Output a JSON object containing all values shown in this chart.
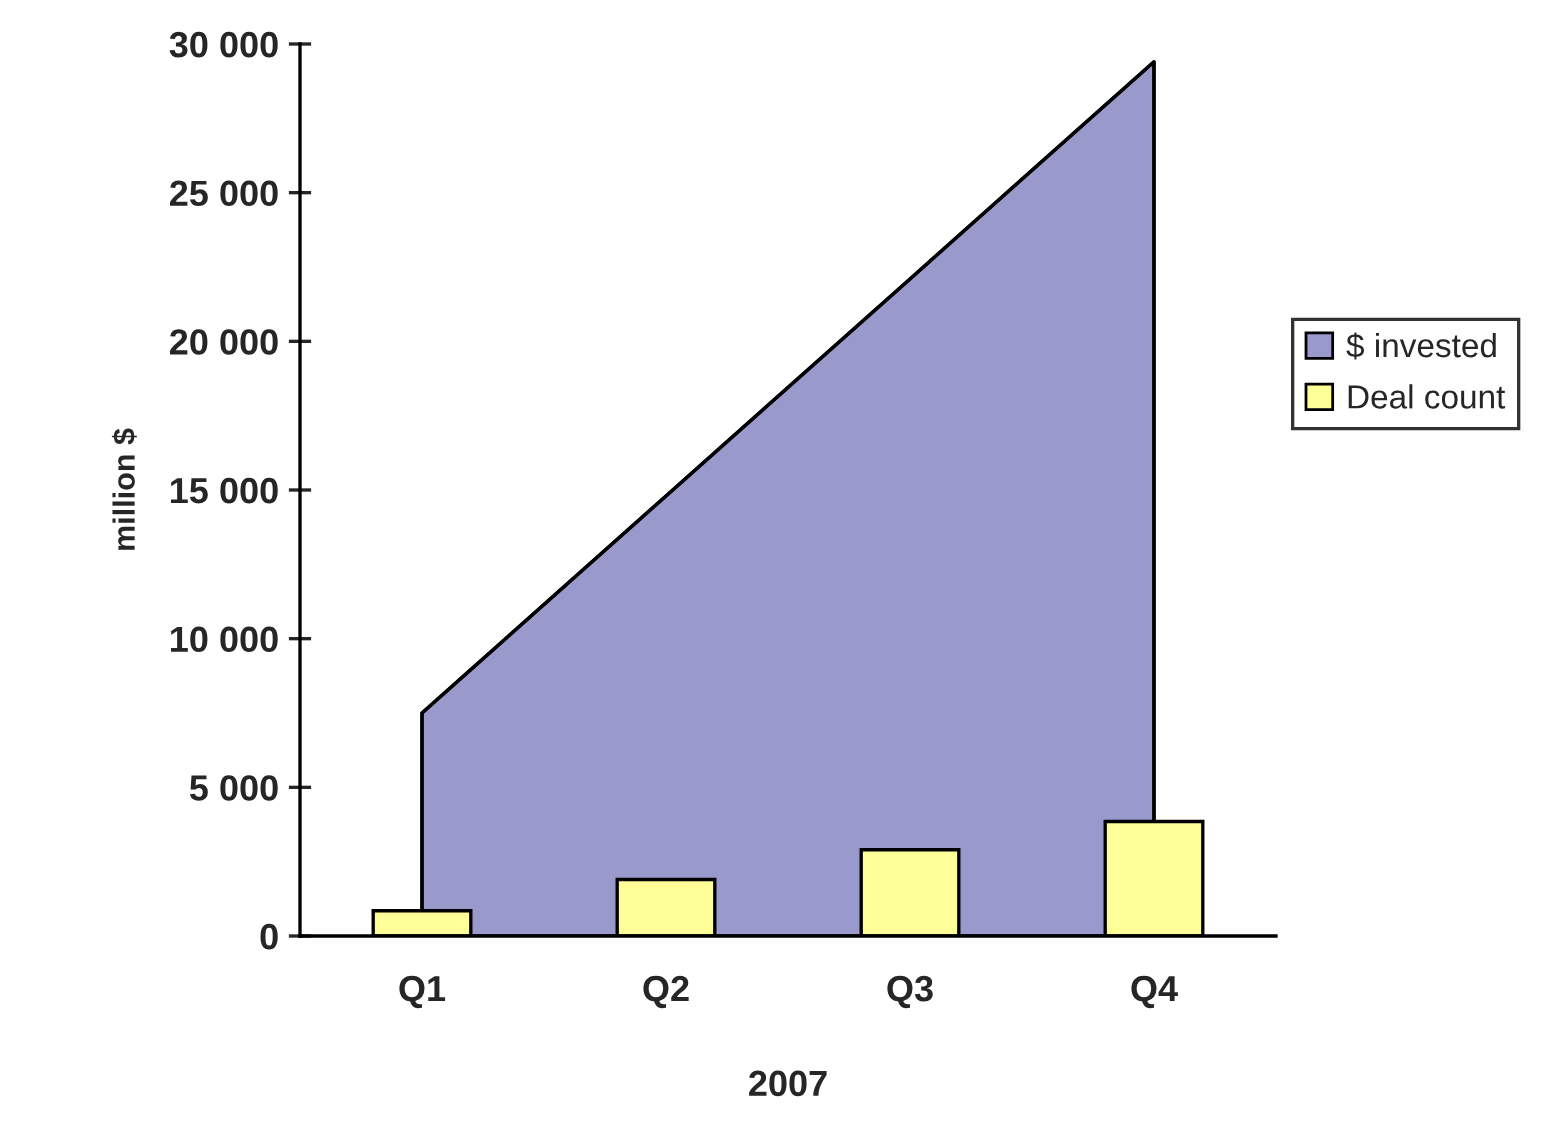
{
  "chart_data": {
    "type": "bar",
    "xlabel": "2007",
    "ylabel": "million $",
    "categories": [
      "Q1",
      "Q2",
      "Q3",
      "Q4"
    ],
    "series": [
      {
        "name": "$ invested",
        "type": "area",
        "color": "#9999cc",
        "values": [
          7500,
          14800,
          22100,
          29400
        ]
      },
      {
        "name": "Deal count",
        "color": "#ffff99",
        "values": [
          850,
          1900,
          2900,
          3850
        ]
      }
    ],
    "ylim": [
      0,
      30000
    ],
    "yticks": [
      {
        "value": 0,
        "label": "0"
      },
      {
        "value": 5000,
        "label": "5 000"
      },
      {
        "value": 10000,
        "label": "10 000"
      },
      {
        "value": 15000,
        "label": "15 000"
      },
      {
        "value": 20000,
        "label": "20 000"
      },
      {
        "value": 25000,
        "label": "25 000"
      },
      {
        "value": 30000,
        "label": "30 000"
      }
    ],
    "grid": false,
    "legend": "right"
  }
}
